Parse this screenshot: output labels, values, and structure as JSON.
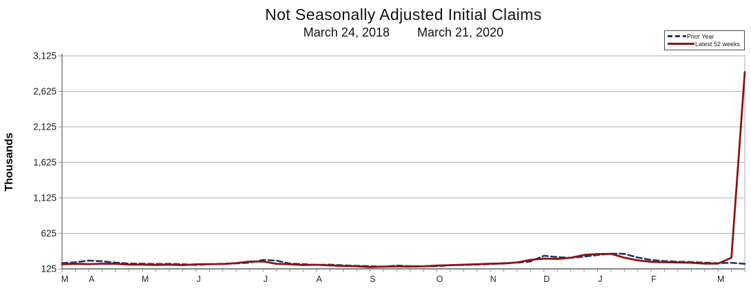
{
  "header": {
    "title": "Not Seasonally Adjusted Initial Claims",
    "date_range": {
      "start": "March 24, 2018",
      "end": "March 21, 2020"
    }
  },
  "chart_data": {
    "type": "line",
    "title": "Not Seasonally Adjusted Initial Claims",
    "subtitle": "March 24, 2018    March 21, 2020",
    "ylabel": "Thousands",
    "xlabel": "",
    "units": "thousands of initial claims per week",
    "ylim": [
      125,
      3125
    ],
    "y_ticks": [
      125,
      625,
      1125,
      1625,
      2125,
      2625,
      3125
    ],
    "grid": "horizontal",
    "legend_position": "top-right",
    "x_axis": {
      "tick_unit": "week",
      "num_weeks": 52,
      "month_labels": [
        "M",
        "A",
        "M",
        "J",
        "J",
        "A",
        "S",
        "O",
        "N",
        "D",
        "J",
        "F",
        "M"
      ],
      "month_week_index": [
        0,
        2,
        6,
        10,
        15,
        19,
        23,
        28,
        32,
        36,
        40,
        44,
        49
      ]
    },
    "series": [
      {
        "name": "Prior Year",
        "style": "dashed",
        "color": "#1F3864",
        "values": [
          206,
          218,
          242,
          232,
          213,
          200,
          198,
          193,
          196,
          190,
          180,
          190,
          197,
          202,
          212,
          250,
          242,
          200,
          192,
          180,
          185,
          175,
          168,
          163,
          155,
          172,
          164,
          162,
          163,
          176,
          180,
          186,
          192,
          206,
          212,
          230,
          310,
          290,
          280,
          298,
          320,
          340,
          337,
          285,
          250,
          235,
          226,
          222,
          212,
          205,
          210,
          196
        ]
      },
      {
        "name": "Latest 52 weeks",
        "style": "solid",
        "color": "#8B1414",
        "values": [
          189,
          196,
          192,
          198,
          197,
          184,
          184,
          180,
          184,
          177,
          189,
          191,
          193,
          207,
          228,
          230,
          197,
          190,
          178,
          183,
          174,
          166,
          162,
          151,
          157,
          159,
          157,
          160,
          172,
          177,
          184,
          190,
          198,
          201,
          216,
          252,
          270,
          265,
          281,
          322,
          334,
          337,
          282,
          245,
          224,
          218,
          215,
          211,
          199,
          199,
          281,
          2898
        ]
      }
    ]
  },
  "colors": {
    "gridline": "#ADADAD",
    "plot_border": "#ADADAD",
    "axis": "#3d3d3d",
    "tick": "#8c8c8c",
    "tick_label": "#1a1a1a",
    "month_label": "#262626"
  }
}
